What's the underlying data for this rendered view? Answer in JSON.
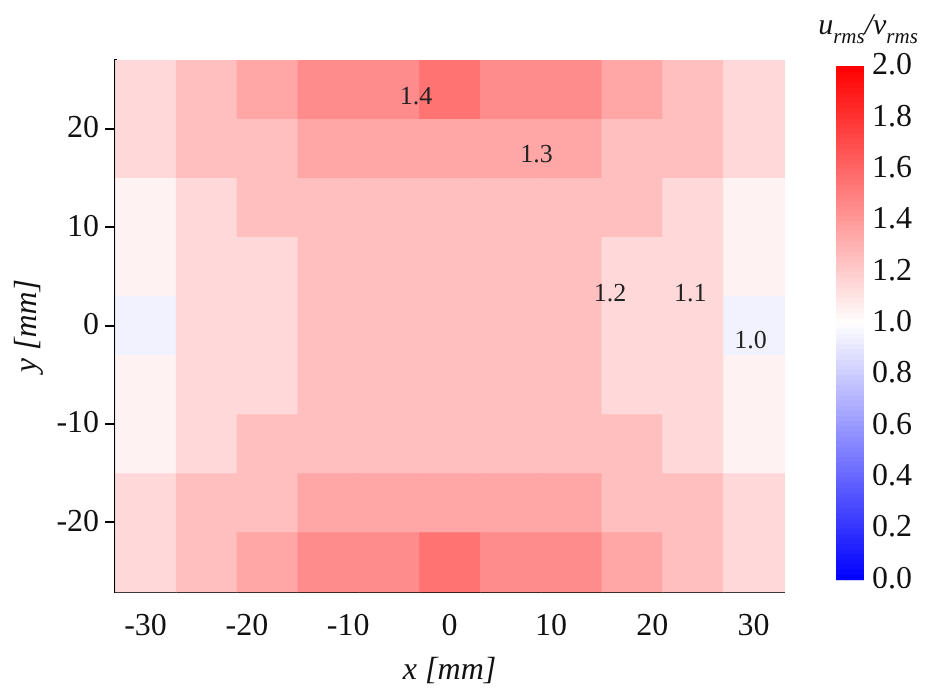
{
  "chart_data": {
    "type": "heatmap",
    "xlabel": "x [mm]",
    "ylabel": "y [mm]",
    "clabel": "u$_{rms}$/v$_{rms}$",
    "x": [
      -30,
      -24,
      -18,
      -12,
      -6,
      0,
      6,
      12,
      18,
      24,
      30
    ],
    "xlim": [
      -33,
      33
    ],
    "xticks": [
      -30,
      -20,
      -10,
      0,
      10,
      20,
      30
    ],
    "ylim": [
      -27,
      27
    ],
    "yticks": [
      -20,
      -10,
      0,
      10,
      20
    ],
    "clim": [
      0,
      2
    ],
    "cticks": [
      {
        "value": 0,
        "label": "0.0"
      },
      0.2,
      0.4,
      0.6,
      0.8,
      {
        "value": 1,
        "label": "1.0"
      },
      1.2,
      1.4,
      1.6,
      1.8,
      {
        "value": 2,
        "label": "2.0"
      }
    ],
    "cells": [
      [
        1.15,
        1.25,
        1.35,
        1.45,
        1.45,
        1.55,
        1.45,
        1.45,
        1.35,
        1.25,
        1.15
      ],
      [
        1.15,
        1.25,
        1.25,
        1.35,
        1.35,
        1.35,
        1.35,
        1.35,
        1.25,
        1.25,
        1.15
      ],
      [
        1.05,
        1.15,
        1.25,
        1.25,
        1.25,
        1.25,
        1.25,
        1.25,
        1.25,
        1.15,
        1.05
      ],
      [
        1.05,
        1.15,
        1.15,
        1.25,
        1.25,
        1.25,
        1.25,
        1.25,
        1.15,
        1.15,
        1.05
      ],
      [
        0.95,
        1.15,
        1.15,
        1.25,
        1.25,
        1.25,
        1.25,
        1.25,
        1.15,
        1.15,
        0.95
      ],
      [
        1.05,
        1.15,
        1.15,
        1.25,
        1.25,
        1.25,
        1.25,
        1.25,
        1.15,
        1.15,
        1.05
      ],
      [
        1.05,
        1.15,
        1.25,
        1.25,
        1.25,
        1.25,
        1.25,
        1.25,
        1.25,
        1.15,
        1.05
      ],
      [
        1.15,
        1.25,
        1.25,
        1.35,
        1.35,
        1.35,
        1.35,
        1.35,
        1.25,
        1.25,
        1.15
      ],
      [
        1.15,
        1.25,
        1.35,
        1.45,
        1.45,
        1.55,
        1.45,
        1.45,
        1.35,
        1.25,
        1.15
      ]
    ],
    "annotations": [
      "1.4",
      "1.3",
      "1.2",
      "1.1",
      "1.0"
    ]
  }
}
